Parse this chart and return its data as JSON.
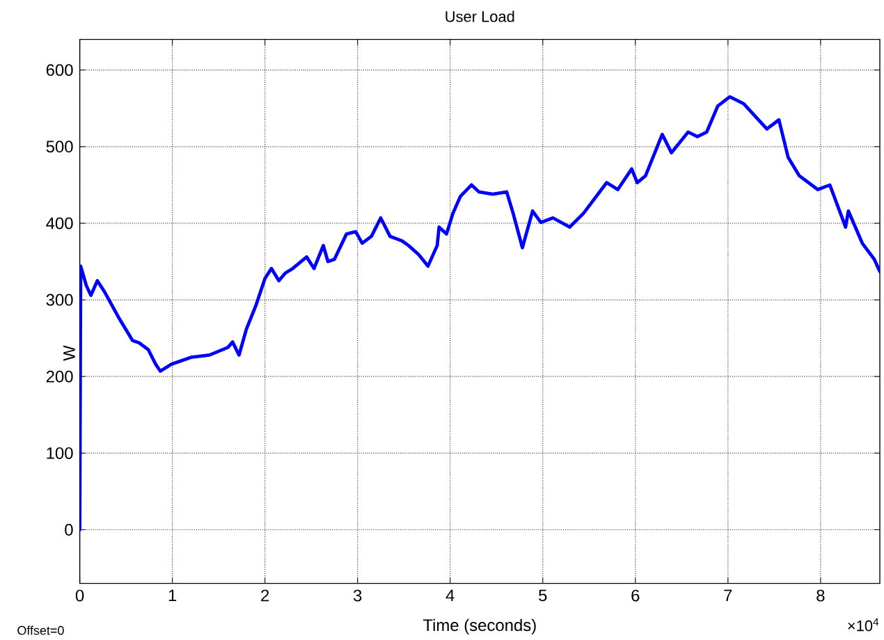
{
  "chart_data": {
    "type": "line",
    "title": "User Load",
    "xlabel": "Time (seconds)",
    "ylabel": "W",
    "annotations": [
      "×10$^{4}$",
      "Offset=0"
    ],
    "x": [
      0,
      0.01,
      0.07,
      0.12,
      0.19,
      0.27,
      0.42,
      0.57,
      0.64,
      0.74,
      0.82,
      0.87,
      0.99,
      1.2,
      1.4,
      1.6,
      1.65,
      1.72,
      1.8,
      1.9,
      2.0,
      2.07,
      2.15,
      2.22,
      2.3,
      2.45,
      2.53,
      2.63,
      2.68,
      2.75,
      2.88,
      2.98,
      3.05,
      3.15,
      3.25,
      3.35,
      3.48,
      3.55,
      3.66,
      3.76,
      3.86,
      3.88,
      3.96,
      4.03,
      4.11,
      4.23,
      4.31,
      4.46,
      4.61,
      4.68,
      4.78,
      4.89,
      4.98,
      5.11,
      5.29,
      5.44,
      5.69,
      5.81,
      5.96,
      6.02,
      6.11,
      6.29,
      6.39,
      6.57,
      6.67,
      6.77,
      6.89,
      7.02,
      7.17,
      7.42,
      7.55,
      7.65,
      7.77,
      7.97,
      8.1,
      8.27,
      8.3,
      8.45,
      8.58,
      8.64
    ],
    "series": [
      {
        "color": "#0000ff",
        "values": [
          0,
          344,
          319,
          306,
          325,
          310,
          277,
          247,
          244,
          235,
          216,
          207,
          216,
          225,
          228,
          238,
          245,
          228,
          262,
          292,
          328,
          341,
          325,
          335,
          341,
          356,
          341,
          371,
          350,
          353,
          386,
          389,
          374,
          383,
          407,
          383,
          377,
          371,
          359,
          344,
          371,
          395,
          386,
          413,
          435,
          450,
          441,
          438,
          441,
          413,
          368,
          416,
          401,
          407,
          395,
          413,
          453,
          444,
          471,
          453,
          462,
          516,
          492,
          519,
          513,
          519,
          553,
          565,
          556,
          523,
          535,
          486,
          462,
          444,
          450,
          395,
          416,
          374,
          353,
          337
        ]
      }
    ],
    "xlim": [
      0,
      8.64
    ],
    "ylim": [
      -70,
      640
    ],
    "xticks": [
      0,
      1,
      2,
      3,
      4,
      5,
      6,
      7,
      8
    ],
    "yticks": [
      0,
      100,
      200,
      300,
      400,
      500,
      600
    ],
    "grid": true
  }
}
